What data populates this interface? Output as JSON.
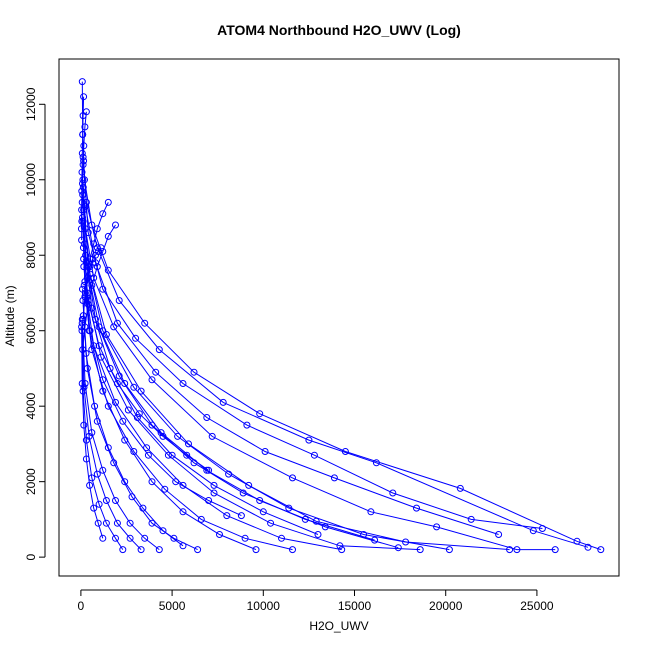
{
  "chart_data": {
    "type": "scatter",
    "title": "ATOM4 Northbound H2O_UWV (Log)",
    "xlabel": "H2O_UWV",
    "ylabel": "Altitude (m)",
    "xlim": [
      -1200,
      29500
    ],
    "ylim": [
      -500,
      13200
    ],
    "x_ticks": [
      0,
      5000,
      10000,
      15000,
      20000,
      25000
    ],
    "y_ticks": [
      0,
      2000,
      4000,
      6000,
      8000,
      10000,
      12000
    ],
    "grid": false,
    "legend": "none",
    "colors": {
      "series": "#0000ff",
      "axes": "#000000"
    },
    "series": [
      {
        "values": [
          [
            28500,
            200
          ],
          [
            27200,
            420
          ],
          [
            20800,
            1820
          ],
          [
            14500,
            2800
          ],
          [
            9800,
            3800
          ],
          [
            6200,
            4900
          ],
          [
            3500,
            6200
          ],
          [
            1500,
            7600
          ],
          [
            600,
            8800
          ],
          [
            200,
            10000
          ],
          [
            100,
            11200
          ],
          [
            80,
            12600
          ]
        ]
      },
      {
        "values": [
          [
            27800,
            260
          ],
          [
            24800,
            700
          ],
          [
            16200,
            2500
          ],
          [
            12500,
            3100
          ],
          [
            7800,
            4100
          ],
          [
            4300,
            5500
          ],
          [
            2100,
            6800
          ],
          [
            900,
            8200
          ],
          [
            300,
            9400
          ],
          [
            120,
            10600
          ]
        ]
      },
      {
        "values": [
          [
            26000,
            200
          ],
          [
            23900,
            200
          ],
          [
            19500,
            800
          ],
          [
            15900,
            1200
          ],
          [
            11600,
            2100
          ],
          [
            7200,
            3200
          ],
          [
            3900,
            4700
          ],
          [
            1800,
            6100
          ],
          [
            700,
            7400
          ],
          [
            250,
            8700
          ],
          [
            110,
            10000
          ]
        ]
      },
      {
        "values": [
          [
            25300,
            760
          ],
          [
            21400,
            1000
          ],
          [
            17100,
            1700
          ],
          [
            12800,
            2700
          ],
          [
            9100,
            3500
          ],
          [
            5600,
            4600
          ],
          [
            3000,
            5800
          ],
          [
            1200,
            7100
          ],
          [
            400,
            8600
          ],
          [
            150,
            10500
          ]
        ]
      },
      {
        "values": [
          [
            23500,
            200
          ],
          [
            17800,
            400
          ],
          [
            12900,
            950
          ],
          [
            9200,
            1900
          ],
          [
            5900,
            3000
          ],
          [
            3300,
            4400
          ],
          [
            1400,
            5900
          ],
          [
            500,
            7500
          ],
          [
            150,
            9200
          ]
        ]
      },
      {
        "values": [
          [
            22900,
            600
          ],
          [
            18400,
            1300
          ],
          [
            13900,
            2100
          ],
          [
            10100,
            2800
          ],
          [
            6900,
            3700
          ],
          [
            4100,
            4900
          ],
          [
            2000,
            6200
          ],
          [
            800,
            7800
          ],
          [
            250,
            9300
          ]
        ]
      },
      {
        "values": [
          [
            20200,
            200
          ],
          [
            15500,
            600
          ],
          [
            11400,
            1300
          ],
          [
            8100,
            2200
          ],
          [
            5300,
            3200
          ],
          [
            2900,
            4500
          ],
          [
            1200,
            6000
          ],
          [
            400,
            7700
          ],
          [
            130,
            9800
          ]
        ]
      },
      {
        "values": [
          [
            18600,
            200
          ],
          [
            14200,
            300
          ],
          [
            10400,
            900
          ],
          [
            7300,
            1700
          ],
          [
            4800,
            2700
          ],
          [
            2600,
            3900
          ],
          [
            1100,
            5300
          ],
          [
            350,
            7000
          ],
          [
            120,
            8900
          ]
        ]
      },
      {
        "values": [
          [
            17400,
            250
          ],
          [
            13400,
            800
          ],
          [
            9800,
            1500
          ],
          [
            6900,
            2300
          ],
          [
            4400,
            3300
          ],
          [
            2400,
            4600
          ],
          [
            1000,
            6100
          ],
          [
            300,
            7800
          ],
          [
            100,
            9600
          ]
        ]
      },
      {
        "values": [
          [
            16100,
            450
          ],
          [
            12300,
            1000
          ],
          [
            8900,
            1700
          ],
          [
            6200,
            2500
          ],
          [
            3900,
            3500
          ],
          [
            2100,
            4800
          ],
          [
            800,
            6300
          ],
          [
            260,
            8000
          ]
        ]
      },
      {
        "values": [
          [
            14300,
            200
          ],
          [
            11000,
            500
          ],
          [
            8000,
            1100
          ],
          [
            5600,
            1900
          ],
          [
            3600,
            2900
          ],
          [
            1900,
            4100
          ],
          [
            700,
            5600
          ],
          [
            220,
            7300
          ],
          [
            90,
            9000
          ]
        ]
      },
      {
        "values": [
          [
            13000,
            600
          ],
          [
            10000,
            1200
          ],
          [
            7300,
            1900
          ],
          [
            5000,
            2700
          ],
          [
            3100,
            3700
          ],
          [
            1600,
            5000
          ],
          [
            600,
            6600
          ],
          [
            200,
            8300
          ]
        ]
      },
      {
        "values": [
          [
            11600,
            200
          ],
          [
            9000,
            500
          ],
          [
            6600,
            1000
          ],
          [
            4600,
            1800
          ],
          [
            2900,
            2800
          ],
          [
            1500,
            4000
          ],
          [
            600,
            5500
          ],
          [
            180,
            7200
          ]
        ]
      },
      {
        "values": [
          [
            9600,
            200
          ],
          [
            7600,
            600
          ],
          [
            5600,
            1200
          ],
          [
            3900,
            2000
          ],
          [
            2400,
            3100
          ],
          [
            1200,
            4400
          ],
          [
            450,
            6000
          ],
          [
            150,
            7900
          ]
        ]
      },
      {
        "values": [
          [
            8800,
            1100
          ],
          [
            7000,
            1500
          ],
          [
            5200,
            2000
          ],
          [
            3700,
            2700
          ],
          [
            2300,
            3600
          ],
          [
            1200,
            4700
          ],
          [
            500,
            6000
          ],
          [
            160,
            7700
          ]
        ]
      },
      {
        "values": [
          [
            7000,
            2300
          ],
          [
            5800,
            2700
          ],
          [
            4500,
            3200
          ],
          [
            3200,
            3800
          ],
          [
            2000,
            4600
          ],
          [
            1000,
            5600
          ],
          [
            400,
            6800
          ],
          [
            140,
            8200
          ]
        ]
      },
      {
        "values": [
          [
            6400,
            200
          ],
          [
            5100,
            500
          ],
          [
            3900,
            900
          ],
          [
            2800,
            1600
          ],
          [
            1800,
            2500
          ],
          [
            900,
            3600
          ],
          [
            350,
            5000
          ],
          [
            110,
            6800
          ]
        ]
      },
      {
        "values": [
          [
            5600,
            300
          ],
          [
            4500,
            700
          ],
          [
            3400,
            1300
          ],
          [
            2400,
            2000
          ],
          [
            1500,
            2900
          ],
          [
            750,
            4000
          ],
          [
            280,
            5400
          ],
          [
            90,
            7100
          ]
        ]
      },
      {
        "values": [
          [
            4300,
            200
          ],
          [
            3500,
            500
          ],
          [
            2700,
            900
          ],
          [
            1900,
            1500
          ],
          [
            1200,
            2300
          ],
          [
            600,
            3300
          ],
          [
            230,
            4600
          ],
          [
            80,
            6300
          ]
        ]
      },
      {
        "values": [
          [
            3300,
            200
          ],
          [
            2700,
            500
          ],
          [
            2000,
            900
          ],
          [
            1400,
            1500
          ],
          [
            900,
            2200
          ],
          [
            450,
            3200
          ],
          [
            170,
            4500
          ],
          [
            70,
            6200
          ]
        ]
      },
      {
        "values": [
          [
            2300,
            200
          ],
          [
            1900,
            500
          ],
          [
            1400,
            900
          ],
          [
            1000,
            1400
          ],
          [
            600,
            2100
          ],
          [
            300,
            3100
          ],
          [
            120,
            4400
          ],
          [
            60,
            6000
          ]
        ]
      },
      {
        "values": [
          [
            1200,
            500
          ],
          [
            950,
            900
          ],
          [
            700,
            1300
          ],
          [
            480,
            1900
          ],
          [
            300,
            2600
          ],
          [
            160,
            3500
          ],
          [
            70,
            4600
          ],
          [
            40,
            6100
          ]
        ]
      },
      {
        "values": [
          [
            1500,
            9400
          ],
          [
            1200,
            9100
          ],
          [
            900,
            8700
          ],
          [
            700,
            8300
          ],
          [
            500,
            7900
          ],
          [
            350,
            7400
          ],
          [
            220,
            6900
          ],
          [
            120,
            6300
          ]
        ]
      },
      {
        "values": [
          [
            1100,
            8200
          ],
          [
            950,
            8100
          ],
          [
            800,
            8000
          ],
          [
            650,
            7900
          ],
          [
            500,
            7700
          ],
          [
            380,
            7400
          ],
          [
            250,
            7000
          ],
          [
            130,
            6400
          ]
        ]
      },
      {
        "values": [
          [
            1900,
            8800
          ],
          [
            1500,
            8500
          ],
          [
            1200,
            8100
          ],
          [
            900,
            7700
          ],
          [
            600,
            7200
          ],
          [
            400,
            6700
          ],
          [
            220,
            6100
          ],
          [
            100,
            5500
          ]
        ]
      },
      {
        "values": [
          [
            300,
            11800
          ],
          [
            220,
            11400
          ],
          [
            160,
            10900
          ],
          [
            120,
            10400
          ],
          [
            90,
            9900
          ],
          [
            70,
            9400
          ],
          [
            50,
            8900
          ],
          [
            40,
            8400
          ]
        ]
      },
      {
        "values": [
          [
            150,
            12200
          ],
          [
            120,
            11700
          ],
          [
            100,
            11200
          ],
          [
            80,
            10700
          ],
          [
            60,
            10200
          ],
          [
            50,
            9700
          ],
          [
            40,
            9200
          ],
          [
            30,
            8700
          ]
        ]
      }
    ]
  }
}
